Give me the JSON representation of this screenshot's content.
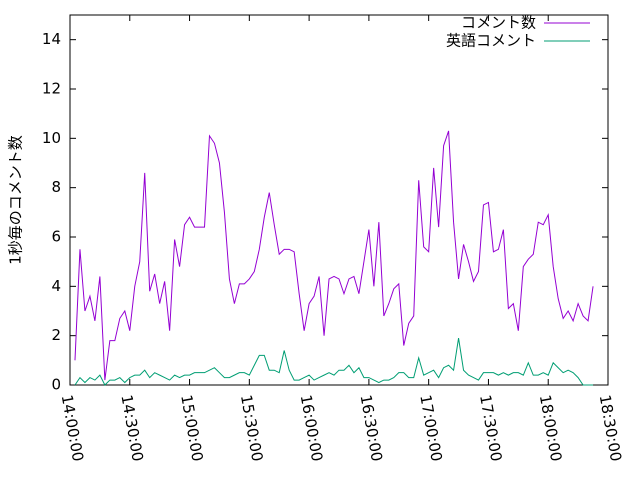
{
  "chart_data": {
    "type": "line",
    "ylabel": "1秒毎のコメント数",
    "x": [
      "14:02:30",
      "14:05:00",
      "14:07:30",
      "14:10:00",
      "14:12:30",
      "14:15:00",
      "14:17:30",
      "14:20:00",
      "14:22:30",
      "14:25:00",
      "14:27:30",
      "14:30:00",
      "14:32:30",
      "14:35:00",
      "14:37:30",
      "14:40:00",
      "14:42:30",
      "14:45:00",
      "14:47:30",
      "14:50:00",
      "14:52:30",
      "14:55:00",
      "14:57:30",
      "15:00:00",
      "15:02:30",
      "15:05:00",
      "15:07:30",
      "15:10:00",
      "15:12:30",
      "15:15:00",
      "15:17:30",
      "15:20:00",
      "15:22:30",
      "15:25:00",
      "15:27:30",
      "15:30:00",
      "15:32:30",
      "15:35:00",
      "15:37:30",
      "15:40:00",
      "15:42:30",
      "15:45:00",
      "15:47:30",
      "15:50:00",
      "15:52:30",
      "15:55:00",
      "15:57:30",
      "16:00:00",
      "16:02:30",
      "16:05:00",
      "16:07:30",
      "16:10:00",
      "16:12:30",
      "16:15:00",
      "16:17:30",
      "16:20:00",
      "16:22:30",
      "16:25:00",
      "16:27:30",
      "16:30:00",
      "16:32:30",
      "16:35:00",
      "16:37:30",
      "16:40:00",
      "16:42:30",
      "16:45:00",
      "16:47:30",
      "16:50:00",
      "16:52:30",
      "16:55:00",
      "16:57:30",
      "17:00:00",
      "17:02:30",
      "17:05:00",
      "17:07:30",
      "17:10:00",
      "17:12:30",
      "17:15:00",
      "17:17:30",
      "17:20:00",
      "17:22:30",
      "17:25:00",
      "17:27:30",
      "17:30:00",
      "17:32:30",
      "17:35:00",
      "17:37:30",
      "17:40:00",
      "17:42:30",
      "17:45:00",
      "17:47:30",
      "17:50:00",
      "17:52:30",
      "17:55:00",
      "17:57:30",
      "18:00:00",
      "18:02:30",
      "18:05:00",
      "18:07:30",
      "18:10:00",
      "18:12:30",
      "18:15:00",
      "18:17:30",
      "18:20:00",
      "18:22:30"
    ],
    "series": [
      {
        "name": "コメント数",
        "color": "#9400d3",
        "values": [
          1.0,
          5.5,
          3.0,
          3.6,
          2.6,
          4.4,
          0.2,
          1.8,
          1.8,
          2.7,
          3.0,
          2.2,
          4.0,
          5.0,
          8.6,
          3.8,
          4.5,
          3.3,
          4.2,
          2.2,
          5.9,
          4.8,
          6.5,
          6.8,
          6.4,
          6.4,
          6.4,
          10.1,
          9.8,
          9.0,
          7.0,
          4.3,
          3.3,
          4.1,
          4.1,
          4.3,
          4.6,
          5.5,
          6.8,
          7.8,
          6.5,
          5.3,
          5.5,
          5.5,
          5.4,
          3.7,
          2.2,
          3.3,
          3.6,
          4.4,
          2.0,
          4.3,
          4.4,
          4.3,
          3.7,
          4.3,
          4.4,
          3.7,
          5.0,
          6.3,
          4.0,
          6.6,
          2.8,
          3.3,
          3.9,
          4.1,
          1.6,
          2.5,
          2.8,
          8.3,
          5.6,
          5.4,
          8.8,
          6.4,
          9.7,
          10.3,
          6.6,
          4.3,
          5.7,
          5.0,
          4.2,
          4.6,
          7.3,
          7.4,
          5.4,
          5.5,
          6.3,
          3.1,
          3.3,
          2.2,
          4.8,
          5.1,
          5.3,
          6.6,
          6.5,
          6.9,
          4.8,
          3.5,
          2.7,
          3.0,
          2.6,
          3.3,
          2.8,
          2.6,
          4.0
        ]
      },
      {
        "name": "英語コメント",
        "color": "#009e73",
        "values": [
          0.0,
          0.3,
          0.1,
          0.3,
          0.2,
          0.4,
          0.0,
          0.2,
          0.2,
          0.3,
          0.1,
          0.3,
          0.4,
          0.4,
          0.6,
          0.3,
          0.5,
          0.4,
          0.3,
          0.2,
          0.4,
          0.3,
          0.4,
          0.4,
          0.5,
          0.5,
          0.5,
          0.6,
          0.7,
          0.5,
          0.3,
          0.3,
          0.4,
          0.5,
          0.5,
          0.4,
          0.8,
          1.2,
          1.2,
          0.6,
          0.6,
          0.5,
          1.4,
          0.6,
          0.2,
          0.2,
          0.3,
          0.4,
          0.2,
          0.3,
          0.4,
          0.5,
          0.4,
          0.6,
          0.6,
          0.8,
          0.5,
          0.7,
          0.3,
          0.3,
          0.2,
          0.1,
          0.2,
          0.2,
          0.3,
          0.5,
          0.5,
          0.3,
          0.3,
          1.1,
          0.4,
          0.5,
          0.6,
          0.3,
          0.7,
          0.8,
          0.6,
          1.9,
          0.6,
          0.4,
          0.3,
          0.2,
          0.5,
          0.5,
          0.5,
          0.4,
          0.5,
          0.4,
          0.5,
          0.5,
          0.4,
          0.9,
          0.4,
          0.4,
          0.5,
          0.4,
          0.9,
          0.7,
          0.5,
          0.6,
          0.5,
          0.3,
          0.0,
          0.0,
          0.0
        ]
      }
    ],
    "xlim": [
      "14:00:00",
      "18:30:00"
    ],
    "xticks": [
      "14:00:00",
      "14:30:00",
      "15:00:00",
      "15:30:00",
      "16:00:00",
      "16:30:00",
      "17:00:00",
      "17:30:00",
      "18:00:00",
      "18:30:00"
    ],
    "ylim": [
      0,
      15
    ],
    "yticks": [
      0,
      2,
      4,
      6,
      8,
      10,
      12,
      14
    ],
    "legend": "top-right"
  }
}
